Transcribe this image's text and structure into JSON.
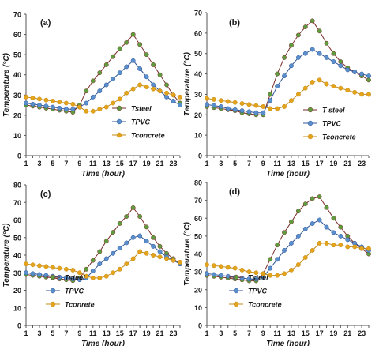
{
  "colors": {
    "steel_fill": "#5f9c3e",
    "steel_line": "#7a2e2a",
    "pvc_fill": "#5a8fce",
    "pvc_line": "#2f5597",
    "concrete_fill": "#e3a31a",
    "concrete_line": "#c58a17"
  },
  "chart_data": [
    {
      "type": "line",
      "panel_label": "(a)",
      "xlabel": "Time (hour)",
      "ylabel": "Temperature (°C)",
      "xlim": [
        1,
        24
      ],
      "ylim": [
        0,
        70
      ],
      "xticks": [
        "1",
        "3",
        "5",
        "7",
        "9",
        "11",
        "13",
        "15",
        "17",
        "19",
        "21",
        "23"
      ],
      "yticks": [
        "0",
        "10",
        "20",
        "30",
        "40",
        "50",
        "60",
        "70"
      ],
      "x": [
        1,
        2,
        3,
        4,
        5,
        6,
        7,
        8,
        9,
        10,
        11,
        12,
        13,
        14,
        15,
        16,
        17,
        18,
        19,
        20,
        21,
        22,
        23,
        24
      ],
      "legend_position": "lower-right",
      "series": [
        {
          "name": "Tsteel",
          "key": "steel",
          "values": [
            25,
            24.5,
            24,
            23.5,
            23,
            22.5,
            22,
            21.5,
            25,
            32,
            37,
            41,
            45,
            49,
            53,
            56,
            60,
            55,
            50,
            45,
            40,
            35,
            30,
            26
          ]
        },
        {
          "name": "TPVC",
          "key": "pvc",
          "values": [
            26,
            25.5,
            25,
            24.5,
            24,
            23.5,
            23,
            23,
            24,
            26,
            29,
            32,
            35,
            38,
            41,
            44,
            47,
            43,
            39,
            35,
            32,
            29,
            27,
            25
          ]
        },
        {
          "name": "Tconcrete",
          "key": "concrete",
          "values": [
            29,
            28.5,
            28,
            27.5,
            27,
            26.5,
            26,
            25.5,
            24,
            22,
            22,
            23,
            24,
            26,
            28,
            31,
            33,
            35,
            34,
            33,
            32,
            31,
            30,
            29
          ]
        }
      ]
    },
    {
      "type": "line",
      "panel_label": "(b)",
      "xlabel": "Time (hour)",
      "ylabel": "Temperature (°C)",
      "xlim": [
        1,
        24
      ],
      "ylim": [
        0,
        70
      ],
      "xticks": [
        "1",
        "3",
        "5",
        "7",
        "9",
        "11",
        "13",
        "15",
        "17",
        "19",
        "21",
        "23"
      ],
      "yticks": [
        "0",
        "10",
        "20",
        "30",
        "40",
        "50",
        "60",
        "70"
      ],
      "x": [
        1,
        2,
        3,
        4,
        5,
        6,
        7,
        8,
        9,
        10,
        11,
        12,
        13,
        14,
        15,
        16,
        17,
        18,
        19,
        20,
        21,
        22,
        23,
        24
      ],
      "legend_position": "lower-right",
      "series": [
        {
          "name": "T steel",
          "key": "steel",
          "values": [
            24,
            23.5,
            23,
            22.5,
            22,
            21,
            20.5,
            20,
            20,
            30,
            40,
            48,
            54,
            59,
            63,
            66,
            61,
            55,
            50,
            46,
            43,
            41,
            39,
            37
          ]
        },
        {
          "name": "TPVC",
          "key": "pvc",
          "values": [
            25,
            24.5,
            24,
            23,
            22.5,
            22,
            21.5,
            21,
            21,
            27,
            34,
            39,
            44,
            48,
            50,
            52,
            50,
            48,
            46,
            44,
            42,
            41,
            40,
            39
          ]
        },
        {
          "name": "Tconcrete",
          "key": "concrete",
          "values": [
            28,
            27.5,
            27,
            26.5,
            26,
            25.5,
            25,
            24.5,
            24,
            23,
            23,
            24,
            27,
            30,
            33,
            36,
            37,
            35,
            34,
            33,
            32,
            31,
            30,
            30
          ]
        }
      ]
    },
    {
      "type": "line",
      "panel_label": "(c)",
      "xlabel": "Time (hour)",
      "ylabel": "Temperature (°C)",
      "xlim": [
        1,
        24
      ],
      "ylim": [
        0,
        80
      ],
      "xticks": [
        "1",
        "3",
        "5",
        "7",
        "9",
        "11",
        "13",
        "15",
        "17",
        "19",
        "21",
        "23"
      ],
      "yticks": [
        "0",
        "10",
        "20",
        "30",
        "40",
        "50",
        "60",
        "70",
        "80"
      ],
      "x": [
        1,
        2,
        3,
        4,
        5,
        6,
        7,
        8,
        9,
        10,
        11,
        12,
        13,
        14,
        15,
        16,
        17,
        18,
        19,
        20,
        21,
        22,
        23,
        24
      ],
      "legend_position": "bottom-center",
      "series": [
        {
          "name": "Tsteel",
          "key": "steel",
          "values": [
            29,
            28.5,
            28,
            27.5,
            27,
            26.5,
            26,
            25.5,
            27,
            32,
            37,
            42,
            48,
            53,
            58,
            62,
            67,
            62,
            56,
            50,
            45,
            41,
            38,
            35
          ]
        },
        {
          "name": "TPVC",
          "key": "pvc",
          "values": [
            30,
            29.5,
            29,
            28.5,
            28,
            27.5,
            27,
            26.5,
            26,
            27,
            31,
            35,
            38,
            41,
            44,
            47,
            50,
            51,
            48,
            45,
            42,
            39,
            37,
            35
          ]
        },
        {
          "name": "Tconrete",
          "key": "concrete",
          "values": [
            35,
            34.5,
            34,
            33.5,
            33,
            32.5,
            32,
            31.5,
            30,
            28,
            27,
            27,
            28,
            30,
            32,
            35,
            38,
            42,
            41,
            40,
            39,
            38,
            37,
            36
          ]
        }
      ]
    },
    {
      "type": "line",
      "panel_label": "(d)",
      "xlabel": "Time (hour)",
      "ylabel": "Temperature (°C)",
      "xlim": [
        1,
        24
      ],
      "ylim": [
        0,
        80
      ],
      "xticks": [
        "1",
        "3",
        "5",
        "7",
        "9",
        "11",
        "13",
        "15",
        "17",
        "19",
        "21",
        "23"
      ],
      "yticks": [
        "0",
        "10",
        "20",
        "30",
        "40",
        "50",
        "60",
        "70",
        "80"
      ],
      "x": [
        1,
        2,
        3,
        4,
        5,
        6,
        7,
        8,
        9,
        10,
        11,
        12,
        13,
        14,
        15,
        16,
        17,
        18,
        19,
        20,
        21,
        22,
        23,
        24
      ],
      "legend_position": "bottom-center",
      "series": [
        {
          "name": "Tsteel",
          "key": "steel",
          "values": [
            28,
            27.5,
            27,
            26.5,
            26,
            25.5,
            25,
            25,
            29,
            37,
            45,
            52,
            58,
            64,
            68,
            71,
            72,
            66,
            60,
            55,
            50,
            46,
            43,
            40
          ]
        },
        {
          "name": "TPVC",
          "key": "pvc",
          "values": [
            29,
            28.5,
            28,
            27.5,
            27,
            26.5,
            26,
            26,
            27,
            32,
            37,
            42,
            46,
            50,
            54,
            57,
            59,
            55,
            52,
            50,
            48,
            46,
            44,
            42
          ]
        },
        {
          "name": "Tconcrete",
          "key": "concrete",
          "values": [
            34,
            33.5,
            33,
            32.5,
            32,
            31,
            30,
            29.5,
            29,
            28,
            28,
            29,
            31,
            34,
            38,
            42,
            46,
            46,
            45,
            45,
            44,
            44,
            43,
            43
          ]
        }
      ]
    }
  ]
}
